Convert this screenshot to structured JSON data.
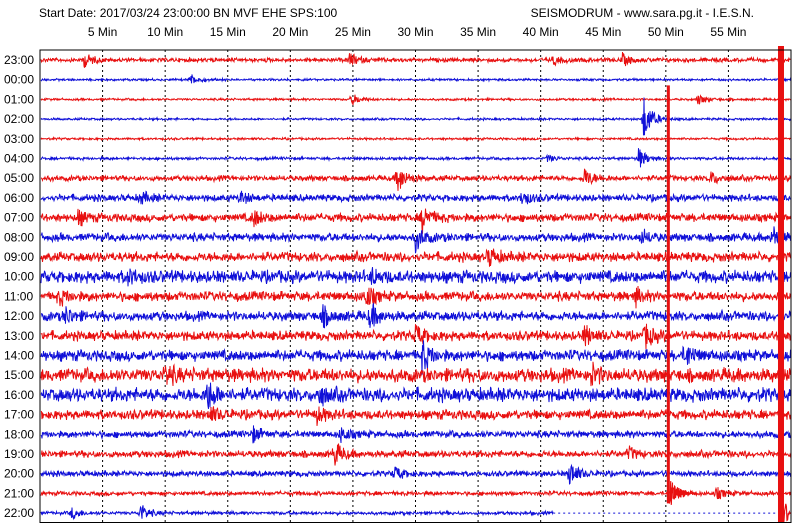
{
  "header": {
    "left_text": "Start Date: 2017/03/24 23:00:00 BN MVF EHE SPS:100",
    "right_text": "SEISMODRUM - www.sara.pg.it - I.E.S.N."
  },
  "chart_data": {
    "type": "line",
    "title": "",
    "x_tick_labels": [
      "5 Min",
      "10 Min",
      "15 Min",
      "20 Min",
      "25 Min",
      "30 Min",
      "35 Min",
      "40 Min",
      "45 Min",
      "50 Min",
      "55 Min"
    ],
    "x_ticks_minutes": [
      5,
      10,
      15,
      20,
      25,
      30,
      35,
      40,
      45,
      50,
      55
    ],
    "xlim_minutes": [
      0,
      60
    ],
    "grid": true,
    "row_labels": [
      "23:00",
      "00:00",
      "01:00",
      "02:00",
      "03:00",
      "04:00",
      "05:00",
      "06:00",
      "07:00",
      "08:00",
      "09:00",
      "10:00",
      "11:00",
      "12:00",
      "13:00",
      "14:00",
      "15:00",
      "16:00",
      "17:00",
      "18:00",
      "19:00",
      "20:00",
      "21:00",
      "22:00"
    ],
    "colors": {
      "trace_a": "#e81010",
      "trace_b": "#1010d8",
      "grid": "#000000",
      "frame": "#000000"
    },
    "series": [
      {
        "row": "23:00",
        "color": "trace_a",
        "noise": 0.15,
        "events": [
          {
            "min": 3.5,
            "amp": 0.6
          },
          {
            "min": 24.7,
            "amp": 0.6
          },
          {
            "min": 41,
            "amp": 0.4
          },
          {
            "min": 46.5,
            "amp": 0.5
          }
        ]
      },
      {
        "row": "00:00",
        "color": "trace_b",
        "noise": 0.08,
        "events": [
          {
            "min": 12.0,
            "amp": 0.5
          }
        ]
      },
      {
        "row": "01:00",
        "color": "trace_a",
        "noise": 0.08,
        "events": [
          {
            "min": 24.9,
            "amp": 0.5
          },
          {
            "min": 52.5,
            "amp": 0.5
          }
        ]
      },
      {
        "row": "02:00",
        "color": "trace_b",
        "noise": 0.08,
        "events": [
          {
            "min": 48.2,
            "amp": 2.0
          }
        ]
      },
      {
        "row": "03:00",
        "color": "trace_a",
        "noise": 0.08,
        "events": []
      },
      {
        "row": "04:00",
        "color": "trace_b",
        "noise": 0.1,
        "events": [
          {
            "min": 47.8,
            "amp": 0.9
          },
          {
            "min": 40.5,
            "amp": 0.3
          }
        ]
      },
      {
        "row": "05:00",
        "color": "trace_a",
        "noise": 0.2,
        "events": [
          {
            "min": 28.5,
            "amp": 1.3
          },
          {
            "min": 43.5,
            "amp": 0.8
          },
          {
            "min": 53.5,
            "amp": 0.6
          }
        ]
      },
      {
        "row": "06:00",
        "color": "trace_b",
        "noise": 0.25,
        "events": [
          {
            "min": 8.0,
            "amp": 0.5
          },
          {
            "min": 16.0,
            "amp": 0.5
          },
          {
            "min": 38.5,
            "amp": 0.6
          }
        ]
      },
      {
        "row": "07:00",
        "color": "trace_a",
        "noise": 0.3,
        "events": [
          {
            "min": 3.0,
            "amp": 0.6
          },
          {
            "min": 17.0,
            "amp": 0.7
          },
          {
            "min": 30.5,
            "amp": 1.2
          }
        ]
      },
      {
        "row": "08:00",
        "color": "trace_b",
        "noise": 0.3,
        "events": [
          {
            "min": 30.0,
            "amp": 1.0
          },
          {
            "min": 48.0,
            "amp": 0.6
          },
          {
            "min": 58.5,
            "amp": 1.0
          }
        ]
      },
      {
        "row": "09:00",
        "color": "trace_a",
        "noise": 0.35,
        "events": [
          {
            "min": 35.8,
            "amp": 0.8
          }
        ]
      },
      {
        "row": "10:00",
        "color": "trace_b",
        "noise": 0.45,
        "events": [
          {
            "min": 7.0,
            "amp": 0.6
          },
          {
            "min": 26.5,
            "amp": 0.6
          }
        ]
      },
      {
        "row": "11:00",
        "color": "trace_a",
        "noise": 0.35,
        "events": [
          {
            "min": 1.5,
            "amp": 0.6
          },
          {
            "min": 26.0,
            "amp": 0.9
          },
          {
            "min": 47.5,
            "amp": 0.7
          }
        ]
      },
      {
        "row": "12:00",
        "color": "trace_b",
        "noise": 0.35,
        "events": [
          {
            "min": 2.0,
            "amp": 0.7
          },
          {
            "min": 22.5,
            "amp": 0.8
          },
          {
            "min": 26.3,
            "amp": 1.1
          }
        ]
      },
      {
        "row": "13:00",
        "color": "trace_a",
        "noise": 0.35,
        "events": [
          {
            "min": 30.0,
            "amp": 0.9
          },
          {
            "min": 43.5,
            "amp": 0.8
          },
          {
            "min": 48.3,
            "amp": 1.0
          }
        ]
      },
      {
        "row": "14:00",
        "color": "trace_b",
        "noise": 0.4,
        "events": [
          {
            "min": 30.5,
            "amp": 1.3
          },
          {
            "min": 51.5,
            "amp": 1.0
          }
        ]
      },
      {
        "row": "15:00",
        "color": "trace_a",
        "noise": 0.5,
        "events": [
          {
            "min": 10.0,
            "amp": 0.8
          },
          {
            "min": 44.0,
            "amp": 0.8
          }
        ]
      },
      {
        "row": "16:00",
        "color": "trace_b",
        "noise": 0.5,
        "events": [
          {
            "min": 13.3,
            "amp": 1.3
          },
          {
            "min": 22.3,
            "amp": 0.7
          }
        ]
      },
      {
        "row": "17:00",
        "color": "trace_a",
        "noise": 0.35,
        "events": [
          {
            "min": 13.5,
            "amp": 0.7
          },
          {
            "min": 22.0,
            "amp": 0.7
          }
        ]
      },
      {
        "row": "18:00",
        "color": "trace_b",
        "noise": 0.25,
        "events": [
          {
            "min": 17.0,
            "amp": 0.6
          },
          {
            "min": 24.0,
            "amp": 0.6
          }
        ]
      },
      {
        "row": "19:00",
        "color": "trace_a",
        "noise": 0.25,
        "events": [
          {
            "min": 23.5,
            "amp": 1.0
          },
          {
            "min": 47.0,
            "amp": 0.5
          }
        ]
      },
      {
        "row": "20:00",
        "color": "trace_b",
        "noise": 0.2,
        "events": [
          {
            "min": 42.3,
            "amp": 1.1
          },
          {
            "min": 28.3,
            "amp": 0.6
          }
        ]
      },
      {
        "row": "21:00",
        "color": "trace_a",
        "noise": 0.15,
        "events": [
          {
            "min": 50.5,
            "amp": 1.0
          },
          {
            "min": 54.0,
            "amp": 0.5
          }
        ]
      },
      {
        "row": "22:00",
        "color": "trace_b",
        "noise": 0.12,
        "events": [
          {
            "min": 2.5,
            "amp": 0.5
          },
          {
            "min": 8.0,
            "amp": 0.8
          }
        ]
      }
    ],
    "saturated_events": [
      {
        "min": 50.2,
        "color": "trace_a",
        "from_row": "01:00",
        "to_row": "21:00"
      },
      {
        "min": 59.2,
        "color": "trace_a",
        "from_row": "23:00",
        "to_row": "22:00"
      }
    ],
    "data_end_minute": 41.0,
    "last_row": "22:00"
  }
}
